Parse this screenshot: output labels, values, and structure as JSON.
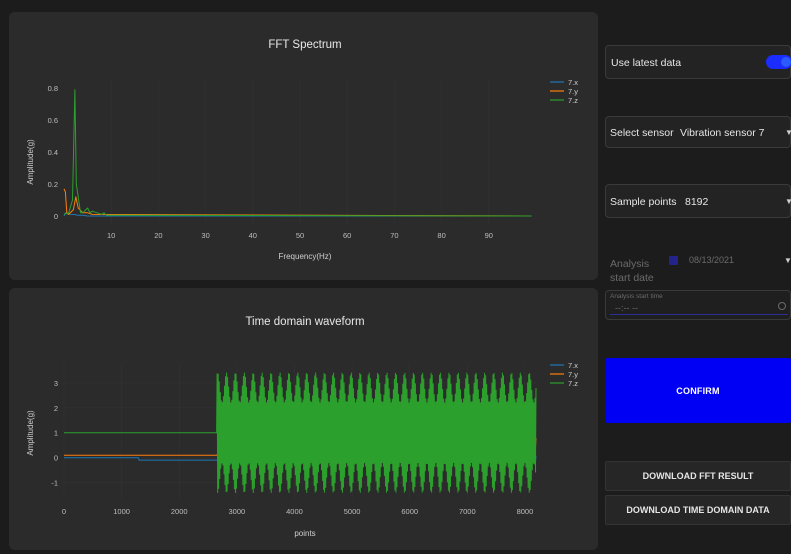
{
  "fft_chart": {
    "title": "FFT Spectrum",
    "xlabel": "Frequency(Hz)",
    "ylabel": "Amplitude(g)",
    "legend": [
      "7.x",
      "7.y",
      "7.z"
    ]
  },
  "time_chart": {
    "title": "Time domain waveform",
    "xlabel": "points",
    "ylabel": "Amplitude(g)",
    "legend": [
      "7.x",
      "7.y",
      "7.z"
    ]
  },
  "chart_data": [
    {
      "type": "line",
      "title": "FFT Spectrum",
      "xlabel": "Frequency(Hz)",
      "ylabel": "Amplitude(g)",
      "xlim": [
        0,
        100
      ],
      "ylim": [
        -0.05,
        0.85
      ],
      "xticks": [
        10,
        20,
        30,
        40,
        50,
        60,
        70,
        80,
        90
      ],
      "yticks": [
        0,
        0.2,
        0.4,
        0.6,
        0.8
      ],
      "grid": true,
      "legend_position": "top-right",
      "series": [
        {
          "name": "7.x",
          "color": "#1f77b4",
          "x": [
            0,
            0.3,
            1,
            2,
            3,
            4,
            5,
            99
          ],
          "y": [
            0,
            0.02,
            0.01,
            0.01,
            0.005,
            0.005,
            0,
            0
          ]
        },
        {
          "name": "7.y",
          "color": "#ff7f0e",
          "x": [
            0,
            0.3,
            0.6,
            1,
            2,
            2.5,
            3,
            4,
            5,
            6,
            99
          ],
          "y": [
            0.17,
            0.15,
            0.02,
            0.01,
            0.04,
            0.12,
            0.05,
            0.02,
            0.02,
            0.01,
            0
          ]
        },
        {
          "name": "7.z",
          "color": "#2ca02c",
          "x": [
            0,
            1,
            1.8,
            2.3,
            2.6,
            3,
            3.5,
            4,
            5,
            5.5,
            6,
            7,
            8,
            8.5,
            9,
            99
          ],
          "y": [
            0.01,
            0.02,
            0.1,
            0.79,
            0.2,
            0.12,
            0.02,
            0.02,
            0.05,
            0.02,
            0.03,
            0.02,
            0.01,
            0.02,
            0.005,
            0
          ]
        }
      ]
    },
    {
      "type": "line",
      "title": "Time domain waveform",
      "xlabel": "points",
      "ylabel": "Amplitude(g)",
      "xlim": [
        0,
        8192
      ],
      "ylim": [
        -1.7,
        3.8
      ],
      "xticks": [
        0,
        1000,
        2000,
        3000,
        4000,
        5000,
        6000,
        7000,
        8000
      ],
      "yticks": [
        -1,
        0,
        1,
        2,
        3
      ],
      "grid": true,
      "legend_position": "top-right",
      "series": [
        {
          "name": "7.x",
          "color": "#1f77b4",
          "baseline": [
            [
              0,
              0.0
            ],
            [
              1300,
              0.0
            ],
            [
              1300,
              -0.1
            ],
            [
              2650,
              -0.1
            ],
            [
              2750,
              -0.15
            ],
            [
              8192,
              -0.05
            ]
          ],
          "oscillation_after": 2700,
          "amplitude": 0.15
        },
        {
          "name": "7.y",
          "color": "#ff7f0e",
          "baseline": [
            [
              0,
              0.1
            ],
            [
              2650,
              0.1
            ],
            [
              2800,
              0.4
            ],
            [
              4000,
              0.8
            ],
            [
              5500,
              0.55
            ],
            [
              8192,
              0.6
            ]
          ],
          "oscillation_after": 2700,
          "amplitude": 0.25
        },
        {
          "name": "7.z",
          "color": "#2ca02c",
          "baseline": [
            [
              0,
              1.0
            ],
            [
              2650,
              1.0
            ],
            [
              2700,
              1.0
            ],
            [
              8192,
              1.0
            ]
          ],
          "oscillation_after": 2650,
          "amplitude": 2.4
        }
      ]
    }
  ],
  "controls": {
    "latest_label": "Use latest data",
    "latest_on": true,
    "sensor_label": "Select sensor",
    "sensor_value": "Vibration sensor 7",
    "sample_label": "Sample points",
    "sample_value": "8192",
    "date_label_1": "Analysis",
    "date_label_2": "start date",
    "date_value": "08/13/2021",
    "time_label": "Analysis start time",
    "time_value": "--:-- --",
    "confirm": "CONFIRM",
    "download_fft": "DOWNLOAD FFT RESULT",
    "download_time": "DOWNLOAD TIME DOMAIN DATA"
  },
  "colors": {
    "accent": "#0000f5",
    "toggle": "#1b2cff",
    "x_series": "#1f77b4",
    "y_series": "#ff7f0e",
    "z_series": "#2ca02c"
  },
  "icons": [
    "calendar-icon",
    "clock-icon",
    "chevron-down-icon"
  ]
}
